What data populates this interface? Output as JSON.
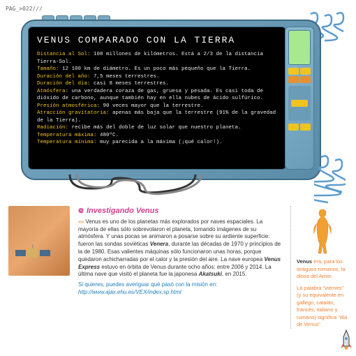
{
  "page": {
    "num": "PAG_>022///"
  },
  "monitor": {
    "title": "VENUS COMPARADO CON LA TIERRA",
    "rows": [
      {
        "label": "Distancia al Sol:",
        "text": " 108 millones de kilómetros. Está a 2/3 de la distancia Tierra-Sol."
      },
      {
        "label": "Tamaño:",
        "text": " 12 100 km de diámetro. Es un poco más pequeño que la Tierra. ",
        "label2": "Duración del año:",
        "text2": " 7,5 meses terrestres."
      },
      {
        "label": "Duración del día:",
        "text": " casi 8 meses terrestres."
      },
      {
        "label": "Atmósfera:",
        "text": " una verdadera coraza de gas, gruesa y pesada. Es casi toda de dióxido de carbono, aunque también hay en ella nubes de ácido sulfúrico."
      },
      {
        "label": "Presión atmosférica:",
        "text": " 90 veces mayor que la terrestre."
      },
      {
        "label": "Atracción gravitatoria:",
        "text": " apenas más baja que la terrestre (91% de la gravedad de la Tierra)."
      },
      {
        "label": "Radiación:",
        "text": " recibe más del doble de luz solar que nuestro planeta."
      },
      {
        "label": "Temperatura máxima:",
        "text": " 480ºC."
      },
      {
        "label": "Temperatura mínima:",
        "text": " muy parecida a la máxima (¡qué calor!)."
      }
    ]
  },
  "article": {
    "title": "Investigando Venus",
    "body": "Venus es uno de los planetas más explorados por naves espaciales. La mayoría de ellas sólo sobrevolaron el planeta, tomando imágenes de su atmósfera. Y unas pocas se animaron a posarse sobre su ardiente superficie: fueron las sondas soviéticas ",
    "em1": "Venera",
    "body2": ", durante las décadas de 1970 y principios de la de 1980. Esas valientes máquinas sólo funcionaron unas horas, porque quedaron achicharradas por el calor y la presión del aire. La nave europea ",
    "em2": "Venus Express",
    "body3": " estuvo en órbita de Venus durante ocho años: entre 2006 y 2014. La última nave que visitó el planeta fue la japonesa ",
    "em3": "Akatsuki",
    "body4": ", en 2015.",
    "link_intro": "Si quieres, puedes averiguar qué pasó con la misión en:",
    "url": "http://www.ajax.ehu.es/VEX/index.sp.html"
  },
  "sidebar": {
    "p1a": "Venus",
    "p1b": " era, para los antiguos romanos, la diosa del Amor.",
    "p2a": "La palabra \"viernes\" (y su equivalente en gallego, catalán, francés, italiano y rumano) significa \"día de Venus\"."
  },
  "colors": {
    "hl": "#f0c420",
    "frame": "#7aa8c0",
    "pink": "#d04090",
    "orange": "#f08030",
    "blue": "#2080c0"
  }
}
